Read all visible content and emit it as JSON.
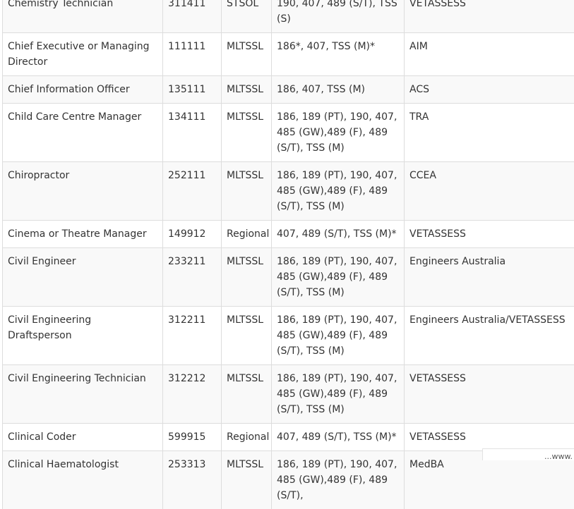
{
  "rows": [
    {
      "occupation": "Chemistry Technician",
      "code": "311411",
      "list": "STSOL",
      "visas": "190, 407, 489 (S/T), TSS (S)",
      "authority": "VETASSESS"
    },
    {
      "occupation": "Chief Executive or Managing Director",
      "code": "111111",
      "list": "MLTSSL",
      "visas": "186*, 407, TSS (M)*",
      "authority": "AIM"
    },
    {
      "occupation": "Chief Information Officer",
      "code": "135111",
      "list": "MLTSSL",
      "visas": "186, 407, TSS (M)",
      "authority": "ACS"
    },
    {
      "occupation": "Child Care Centre Manager",
      "code": "134111",
      "list": "MLTSSL",
      "visas": "186, 189 (PT), 190, 407, 485 (GW),489 (F), 489 (S/T), TSS (M)",
      "authority": "TRA"
    },
    {
      "occupation": "Chiropractor",
      "code": "252111",
      "list": "MLTSSL",
      "visas": "186, 189 (PT), 190, 407, 485 (GW),489 (F), 489 (S/T), TSS (M)",
      "authority": "CCEA"
    },
    {
      "occupation": "Cinema or Theatre Manager",
      "code": "149912",
      "list": "Regional",
      "visas": "407, 489 (S/T), TSS (M)*",
      "authority": "VETASSESS"
    },
    {
      "occupation": "Civil Engineer",
      "code": "233211",
      "list": "MLTSSL",
      "visas": "186, 189 (PT), 190, 407, 485 (GW),489 (F), 489 (S/T), TSS (M)",
      "authority": "Engineers Australia"
    },
    {
      "occupation": "Civil Engineering Draftsperson",
      "code": "312211",
      "list": "MLTSSL",
      "visas": "186, 189 (PT), 190, 407, 485 (GW),489 (F), 489 (S/T), TSS (M)",
      "authority": "Engineers Australia/VETASSESS"
    },
    {
      "occupation": "Civil Engineering Technician",
      "code": "312212",
      "list": "MLTSSL",
      "visas": "186, 189 (PT), 190, 407, 485 (GW),489 (F), 489 (S/T), TSS (M)",
      "authority": "VETASSESS"
    },
    {
      "occupation": "Clinical Coder",
      "code": "599915",
      "list": "Regional",
      "visas": "407, 489 (S/T), TSS (M)*",
      "authority": "VETASSESS"
    },
    {
      "occupation": "Clinical Haematologist",
      "code": "253313",
      "list": "MLTSSL",
      "visas": "186, 189 (PT), 190, 407, 485 (GW),489 (F), 489 (S/T),",
      "authority": "MedBA"
    }
  ],
  "watermark": "...www."
}
